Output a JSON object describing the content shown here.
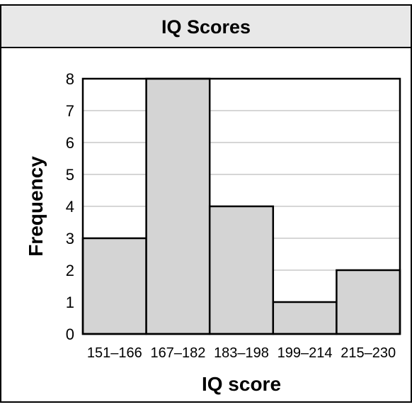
{
  "chart_data": {
    "type": "bar",
    "title": "IQ Scores",
    "xlabel": "IQ score",
    "ylabel": "Frequency",
    "categories": [
      "151–166",
      "167–182",
      "183–198",
      "199–214",
      "215–230"
    ],
    "values": [
      3,
      8,
      4,
      1,
      2
    ],
    "ylim": [
      0,
      8
    ],
    "yticks": [
      "0",
      "1",
      "2",
      "3",
      "4",
      "5",
      "6",
      "7",
      "8"
    ],
    "grid": true,
    "colors": {
      "bar_fill": "#d4d4d4",
      "title_band": "#e8e8e8",
      "grid": "#c8c8c8"
    }
  }
}
